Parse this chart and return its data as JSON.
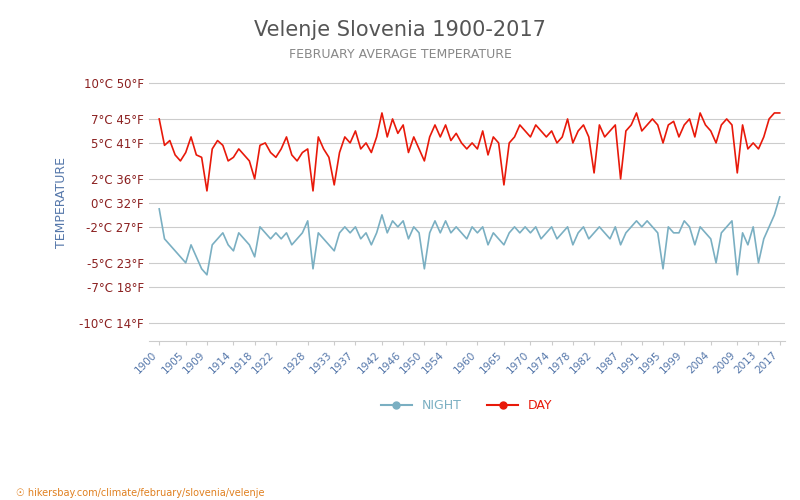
{
  "title": "Velenje Slovenia 1900-2017",
  "subtitle": "FEBRUARY AVERAGE TEMPERATURE",
  "ylabel": "TEMPERATURE",
  "xlabel_url": "hikersbay.com/climate/february/slovenia/velenje",
  "yticks_c": [
    10,
    7,
    5,
    2,
    0,
    -2,
    -5,
    -7,
    -10
  ],
  "yticks_f": [
    50,
    45,
    41,
    36,
    32,
    27,
    23,
    18,
    14
  ],
  "ylim": [
    -11.5,
    11.5
  ],
  "x_tick_labels": [
    "1900",
    "1905",
    "1909",
    "1914",
    "1918",
    "1922",
    "1928",
    "1933",
    "1937",
    "1942",
    "1946",
    "1950",
    "1954",
    "1960",
    "1965",
    "1970",
    "1974",
    "1978",
    "1982",
    "1987",
    "1991",
    "1995",
    "1999",
    "2004",
    "2009",
    "2013",
    "2017"
  ],
  "background_color": "#ffffff",
  "grid_color": "#cccccc",
  "day_color": "#e8190a",
  "night_color": "#7aafc2",
  "title_color": "#555555",
  "subtitle_color": "#888888",
  "ylabel_color": "#5577aa",
  "ytick_color": "#8b2020",
  "xtick_color": "#5577aa",
  "legend_night_color": "#7aafc2",
  "legend_day_color": "#e8190a",
  "years": [
    1900,
    1901,
    1902,
    1903,
    1904,
    1905,
    1906,
    1907,
    1908,
    1909,
    1910,
    1911,
    1912,
    1913,
    1914,
    1915,
    1916,
    1917,
    1918,
    1919,
    1920,
    1921,
    1922,
    1923,
    1924,
    1925,
    1926,
    1927,
    1928,
    1929,
    1930,
    1931,
    1932,
    1933,
    1934,
    1935,
    1936,
    1937,
    1938,
    1939,
    1940,
    1941,
    1942,
    1943,
    1944,
    1945,
    1946,
    1947,
    1948,
    1949,
    1950,
    1951,
    1952,
    1953,
    1954,
    1955,
    1956,
    1957,
    1958,
    1959,
    1960,
    1961,
    1962,
    1963,
    1964,
    1965,
    1966,
    1967,
    1968,
    1969,
    1970,
    1971,
    1972,
    1973,
    1974,
    1975,
    1976,
    1977,
    1978,
    1979,
    1980,
    1981,
    1982,
    1983,
    1984,
    1985,
    1986,
    1987,
    1988,
    1989,
    1990,
    1991,
    1992,
    1993,
    1994,
    1995,
    1996,
    1997,
    1998,
    1999,
    2000,
    2001,
    2002,
    2003,
    2004,
    2005,
    2006,
    2007,
    2008,
    2009,
    2010,
    2011,
    2012,
    2013,
    2014,
    2015,
    2016,
    2017
  ],
  "day_temps": [
    7.0,
    4.8,
    5.2,
    4.0,
    3.5,
    4.2,
    5.5,
    4.0,
    3.8,
    1.0,
    4.5,
    5.2,
    4.8,
    3.5,
    3.8,
    4.5,
    4.0,
    3.5,
    2.0,
    4.8,
    5.0,
    4.2,
    3.8,
    4.5,
    5.5,
    4.0,
    3.5,
    4.2,
    4.5,
    1.0,
    5.5,
    4.5,
    3.8,
    1.5,
    4.2,
    5.5,
    5.0,
    6.0,
    4.5,
    5.0,
    4.2,
    5.5,
    7.5,
    5.5,
    7.0,
    5.8,
    6.5,
    4.2,
    5.5,
    4.5,
    3.5,
    5.5,
    6.5,
    5.5,
    6.5,
    5.2,
    5.8,
    5.0,
    4.5,
    5.0,
    4.5,
    6.0,
    4.0,
    5.5,
    5.0,
    1.5,
    5.0,
    5.5,
    6.5,
    6.0,
    5.5,
    6.5,
    6.0,
    5.5,
    6.0,
    5.0,
    5.5,
    7.0,
    5.0,
    6.0,
    6.5,
    5.5,
    2.5,
    6.5,
    5.5,
    6.0,
    6.5,
    2.0,
    6.0,
    6.5,
    7.5,
    6.0,
    6.5,
    7.0,
    6.5,
    5.0,
    6.5,
    6.8,
    5.5,
    6.5,
    7.0,
    5.5,
    7.5,
    6.5,
    6.0,
    5.0,
    6.5,
    7.0,
    6.5,
    2.5,
    6.5,
    4.5,
    5.0,
    4.5,
    5.5,
    7.0,
    7.5,
    7.5
  ],
  "night_temps": [
    -0.5,
    -3.0,
    -3.5,
    -4.0,
    -4.5,
    -5.0,
    -3.5,
    -4.5,
    -5.5,
    -6.0,
    -3.5,
    -3.0,
    -2.5,
    -3.5,
    -4.0,
    -2.5,
    -3.0,
    -3.5,
    -4.5,
    -2.0,
    -2.5,
    -3.0,
    -2.5,
    -3.0,
    -2.5,
    -3.5,
    -3.0,
    -2.5,
    -1.5,
    -5.5,
    -2.5,
    -3.0,
    -3.5,
    -4.0,
    -2.5,
    -2.0,
    -2.5,
    -2.0,
    -3.0,
    -2.5,
    -3.5,
    -2.5,
    -1.0,
    -2.5,
    -1.5,
    -2.0,
    -1.5,
    -3.0,
    -2.0,
    -2.5,
    -5.5,
    -2.5,
    -1.5,
    -2.5,
    -1.5,
    -2.5,
    -2.0,
    -2.5,
    -3.0,
    -2.0,
    -2.5,
    -2.0,
    -3.5,
    -2.5,
    -3.0,
    -3.5,
    -2.5,
    -2.0,
    -2.5,
    -2.0,
    -2.5,
    -2.0,
    -3.0,
    -2.5,
    -2.0,
    -3.0,
    -2.5,
    -2.0,
    -3.5,
    -2.5,
    -2.0,
    -3.0,
    -2.5,
    -2.0,
    -2.5,
    -3.0,
    -2.0,
    -3.5,
    -2.5,
    -2.0,
    -1.5,
    -2.0,
    -1.5,
    -2.0,
    -2.5,
    -5.5,
    -2.0,
    -2.5,
    -2.5,
    -1.5,
    -2.0,
    -3.5,
    -2.0,
    -2.5,
    -3.0,
    -5.0,
    -2.5,
    -2.0,
    -1.5,
    -6.0,
    -2.5,
    -3.5,
    -2.0,
    -5.0,
    -3.0,
    -2.0,
    -1.0,
    0.5
  ]
}
